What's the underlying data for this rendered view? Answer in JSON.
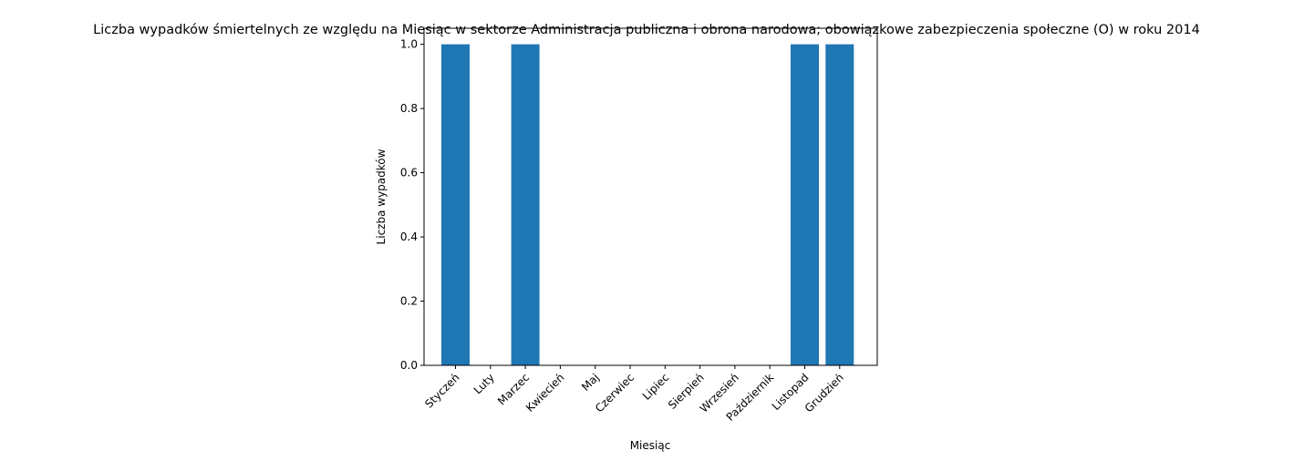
{
  "chart_data": {
    "type": "bar",
    "title": "Liczba wypadków śmiertelnych ze względu na Miesiąc w sektorze Administracja publiczna i obrona narodowa; obowiązkowe zabezpieczenia społeczne (O) w roku 2014",
    "xlabel": "Miesiąc",
    "ylabel": "Liczba wypadków",
    "categories": [
      "Styczeń",
      "Luty",
      "Marzec",
      "Kwiecień",
      "Maj",
      "Czerwiec",
      "Lipiec",
      "Sierpień",
      "Wrzesień",
      "Październik",
      "Listopad",
      "Grudzień"
    ],
    "values": [
      1,
      0,
      1,
      0,
      0,
      0,
      0,
      0,
      0,
      0,
      1,
      1
    ],
    "ylim": [
      0,
      1.05
    ],
    "yticks": [
      "0.0",
      "0.2",
      "0.4",
      "0.6",
      "0.8",
      "1.0"
    ],
    "bar_color": "#1f77b4",
    "grid": false,
    "legend": "none"
  }
}
